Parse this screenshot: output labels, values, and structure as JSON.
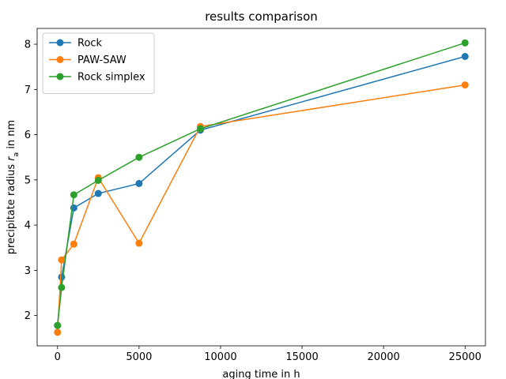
{
  "chart_data": {
    "type": "line",
    "title": "results comparison",
    "xlabel": "aging time in h",
    "ylabel_main": "precipitate radius ",
    "ylabel_var": "r",
    "ylabel_sub": "a",
    "ylabel_tail": " in nm",
    "xlim": [
      -1250,
      26250
    ],
    "ylim": [
      1.33,
      8.35
    ],
    "xticks": [
      0,
      5000,
      10000,
      15000,
      20000,
      25000
    ],
    "yticks": [
      2,
      3,
      4,
      5,
      6,
      7,
      8
    ],
    "grid": false,
    "legend_position": "top-left",
    "series": [
      {
        "name": "Rock",
        "color": "#1f77b4",
        "x": [
          0,
          250,
          1000,
          2500,
          5000,
          8760,
          25000
        ],
        "y": [
          1.78,
          2.85,
          4.38,
          4.7,
          4.92,
          6.1,
          7.73
        ]
      },
      {
        "name": "PAW-SAW",
        "color": "#ff7f0e",
        "x": [
          0,
          250,
          1000,
          2500,
          5000,
          8760,
          25000
        ],
        "y": [
          1.63,
          3.23,
          3.58,
          5.05,
          3.6,
          6.18,
          7.1
        ]
      },
      {
        "name": "Rock simplex",
        "color": "#2ca02c",
        "x": [
          0,
          250,
          1000,
          2500,
          5000,
          8760,
          25000
        ],
        "y": [
          1.78,
          2.62,
          4.67,
          4.99,
          5.5,
          6.13,
          8.03
        ]
      }
    ]
  }
}
